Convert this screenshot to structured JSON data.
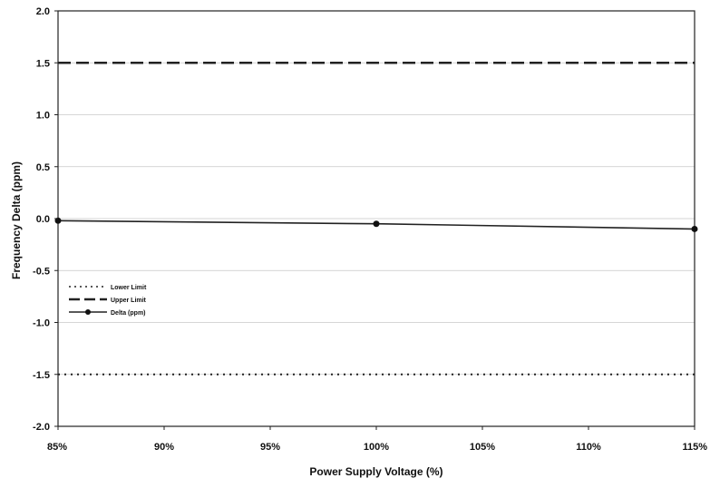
{
  "chart_data": {
    "type": "line",
    "title": "",
    "xlabel": "Power Supply Voltage (%)",
    "ylabel": "Frequency Delta (ppm)",
    "x": [
      85,
      90,
      95,
      100,
      105,
      110,
      115
    ],
    "x_tick_labels": [
      "85%",
      "90%",
      "95%",
      "100%",
      "105%",
      "110%",
      "115%"
    ],
    "xlim": [
      85,
      115
    ],
    "ylim": [
      -2.0,
      2.0
    ],
    "y_ticks": [
      2.0,
      1.5,
      1.0,
      0.5,
      0.0,
      -0.5,
      -1.0,
      -1.5,
      -2.0
    ],
    "y_tick_labels": [
      "2.0",
      "1.5",
      "1.0",
      "0.5",
      "0.0",
      "-0.5",
      "-1.0",
      "-1.5",
      "-2.0"
    ],
    "grid": true,
    "legend_position": "left",
    "series": [
      {
        "name": "Lower Limit",
        "style": "dotted",
        "color": "#222222",
        "points": [
          [
            85,
            -1.5
          ],
          [
            115,
            -1.5
          ]
        ]
      },
      {
        "name": "Upper Limit",
        "style": "dashed",
        "color": "#222222",
        "points": [
          [
            85,
            1.5
          ],
          [
            115,
            1.5
          ]
        ]
      },
      {
        "name": "Delta (ppm)",
        "style": "solid-markers",
        "color": "#222222",
        "points": [
          [
            85,
            -0.02
          ],
          [
            100,
            -0.05
          ],
          [
            115,
            -0.1
          ]
        ]
      }
    ]
  }
}
